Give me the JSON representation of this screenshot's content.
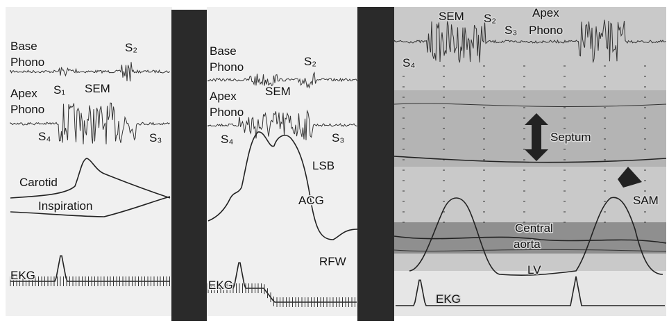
{
  "panels": [
    {
      "labels": [
        "Base",
        "Phono",
        "S₂",
        "S₁",
        "SEM",
        "Apex",
        "Phono",
        "S₄",
        "S₃",
        "Carotid",
        "Inspiration",
        "EKG"
      ]
    },
    {
      "labels": [
        "Base",
        "Phono",
        "S₂",
        "SEM",
        "Apex",
        "Phono",
        "S₄",
        "S₃",
        "LSB",
        "ACG",
        "RFW",
        "EKG"
      ]
    },
    {
      "labels": [
        "SEM",
        "S₂",
        "S₃",
        "Apex",
        "Phono",
        "S₄",
        "Septum",
        "SAM",
        "Central",
        "aorta",
        "LV",
        "EKG"
      ]
    }
  ]
}
